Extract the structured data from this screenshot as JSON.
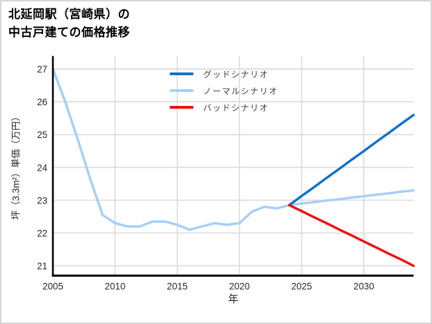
{
  "window": {
    "background": "#ffffff",
    "border_color": "#d6d6d6"
  },
  "header": {
    "title_line1": "北延岡駅（宮崎県）の",
    "title_line2": "中古戸建ての価格推移"
  },
  "legend": {
    "items": [
      {
        "label": "グッドシナリオ",
        "color": "#0f72c8"
      },
      {
        "label": "ノーマルシナリオ",
        "color": "#a6cff7"
      },
      {
        "label": "バッドシナリオ",
        "color": "#f11010"
      }
    ]
  },
  "chart_data": {
    "type": "line",
    "title": "北延岡駅（宮崎県）の中古戸建ての価格推移",
    "xlabel": "年",
    "ylabel": "坪（3.3m²）単価（万円）",
    "xlim": [
      2005,
      2034
    ],
    "ylim": [
      20.7,
      27.4
    ],
    "xticks": [
      2005,
      2010,
      2015,
      2020,
      2025,
      2030
    ],
    "yticks": [
      21,
      22,
      23,
      24,
      25,
      26,
      27
    ],
    "grid": true,
    "grid_color": "#dcdcdc",
    "axis_color": "#000000",
    "tick_label_color": "#262626",
    "legend_position": "top-center-inside",
    "series": [
      {
        "id": "good-scenario",
        "name": "グッドシナリオ",
        "color": "#0f72c8",
        "x": [
          2024,
          2025,
          2026,
          2027,
          2028,
          2029,
          2030,
          2031,
          2032,
          2033,
          2034
        ],
        "y": [
          22.85,
          23.13,
          23.4,
          23.68,
          23.95,
          24.23,
          24.5,
          24.78,
          25.05,
          25.33,
          25.6
        ]
      },
      {
        "id": "normal-scenario",
        "name": "ノーマルシナリオ",
        "color": "#a6cff7",
        "x": [
          2005,
          2006,
          2007,
          2008,
          2009,
          2010,
          2011,
          2012,
          2013,
          2014,
          2015,
          2016,
          2017,
          2018,
          2019,
          2020,
          2021,
          2022,
          2023,
          2024,
          2025,
          2026,
          2027,
          2028,
          2029,
          2030,
          2031,
          2032,
          2033,
          2034
        ],
        "y": [
          27.0,
          26.0,
          24.85,
          23.65,
          22.55,
          22.3,
          22.2,
          22.2,
          22.35,
          22.35,
          22.25,
          22.1,
          22.2,
          22.3,
          22.25,
          22.3,
          22.65,
          22.8,
          22.75,
          22.85,
          22.9,
          22.94,
          22.99,
          23.03,
          23.08,
          23.12,
          23.17,
          23.21,
          23.26,
          23.3
        ]
      },
      {
        "id": "bad-scenario",
        "name": "バッドシナリオ",
        "color": "#f11010",
        "x": [
          2024,
          2025,
          2026,
          2027,
          2028,
          2029,
          2030,
          2031,
          2032,
          2033,
          2034
        ],
        "y": [
          22.85,
          22.67,
          22.48,
          22.3,
          22.11,
          21.93,
          21.74,
          21.56,
          21.37,
          21.19,
          21.0
        ]
      }
    ]
  }
}
